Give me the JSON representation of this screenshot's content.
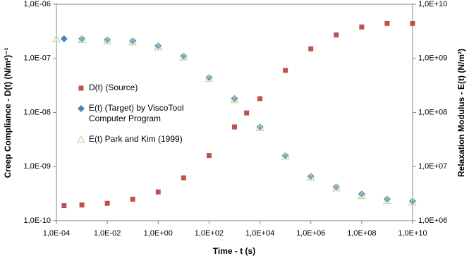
{
  "chart_data": {
    "type": "scatter",
    "xlabel": "Time - t (s)",
    "ylabel": "Creep Compliance  - D(t) (N/m²)⁻¹",
    "y2label": "Relaxation Modulus - E(t) (N/m²)",
    "log_x": true,
    "log_y": true,
    "log_y2": true,
    "xlim": [
      0.0001,
      10000000000
    ],
    "ylim": [
      1e-10,
      1e-06
    ],
    "y2lim": [
      1000000,
      10000000000
    ],
    "xticks": [
      {
        "value": 0.0001,
        "label": "1,0E-04"
      },
      {
        "value": 0.01,
        "label": "1,0E-02"
      },
      {
        "value": 1,
        "label": "1,0E+00"
      },
      {
        "value": 100,
        "label": "1,0E+02"
      },
      {
        "value": 10000,
        "label": "1,0E+04"
      },
      {
        "value": 1000000,
        "label": "1,0E+06"
      },
      {
        "value": 100000000,
        "label": "1,0E+08"
      },
      {
        "value": 10000000000,
        "label": "1,0E+10"
      }
    ],
    "yticks": [
      {
        "value": 1e-10,
        "label": "1,0E-10"
      },
      {
        "value": 1e-09,
        "label": "1,0E-09"
      },
      {
        "value": 1e-08,
        "label": "1,0E-08"
      },
      {
        "value": 1e-07,
        "label": "1,0E-07"
      },
      {
        "value": 1e-06,
        "label": "1,0E-06"
      }
    ],
    "y2ticks": [
      {
        "value": 1000000,
        "label": "1,0E+06"
      },
      {
        "value": 10000000,
        "label": "1,0E+07"
      },
      {
        "value": 100000000,
        "label": "1,0E+08"
      },
      {
        "value": 1000000000,
        "label": "1,0E+09"
      },
      {
        "value": 10000000000,
        "label": "1,0E+10"
      }
    ],
    "series": [
      {
        "name": "D(t) (Source)",
        "color": "#c0504d",
        "marker": "square",
        "axis": "y",
        "x": [
          0.0002,
          0.001,
          0.01,
          0.1,
          1,
          10,
          100,
          1000,
          3000,
          10000,
          100000,
          1000000,
          10000000,
          100000000,
          1000000000,
          10000000000
        ],
        "values": [
          1.9e-10,
          1.95e-10,
          2.1e-10,
          2.5e-10,
          3.4e-10,
          6.2e-10,
          1.6e-09,
          5.4e-09,
          9.8e-09,
          1.8e-08,
          6e-08,
          1.5e-07,
          2.7e-07,
          3.8e-07,
          4.4e-07,
          4.4e-07
        ]
      },
      {
        "name": "E(t) (Target)  by ViscoTool Computer Program",
        "color": "#4f81bd",
        "marker": "diamond",
        "axis": "y2",
        "x": [
          0.0002,
          0.001,
          0.01,
          0.1,
          1,
          10,
          100,
          1000,
          10000,
          100000,
          1000000,
          10000000,
          100000000,
          1000000000,
          10000000000
        ],
        "values": [
          2300000000,
          2300000000,
          2200000000,
          2100000000,
          1700000000,
          1100000000,
          440000000,
          180000000,
          54000000,
          16000000,
          6600000,
          4200000,
          3100000,
          2500000,
          2300000
        ]
      },
      {
        "name": "E(t) Park and Kim (1999)",
        "color": "#c4d79b",
        "marker": "triangle",
        "axis": "y2",
        "x": [
          0.0001,
          0.001,
          0.01,
          0.1,
          1,
          10,
          100,
          1000,
          10000,
          100000,
          1000000,
          10000000,
          100000000,
          1000000000,
          10000000000
        ],
        "values": [
          2300000000,
          2200000000,
          2100000000,
          2000000000,
          1600000000,
          1050000000,
          420000000,
          170000000,
          52000000,
          15500000,
          6300000,
          4000000,
          2900000,
          2350000,
          2200000
        ]
      }
    ]
  }
}
